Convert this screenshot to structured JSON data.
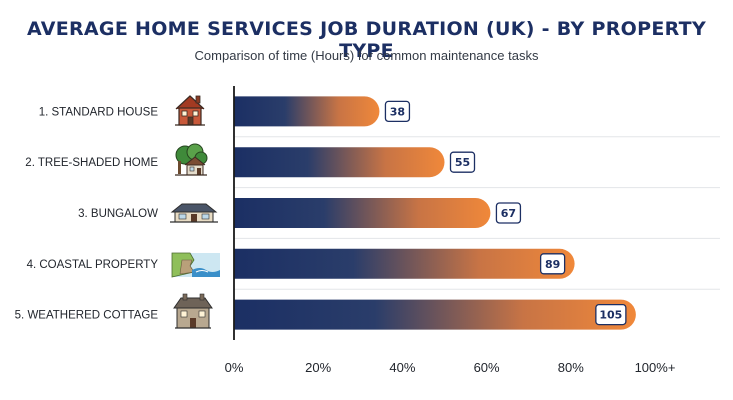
{
  "chart_data": {
    "type": "bar",
    "orientation": "horizontal",
    "title": "AVERAGE HOME SERVICES JOB DURATION (UK) - BY PROPERTY TYPE",
    "subtitle": "Comparison of time (Hours) for common maintenance tasks",
    "categories": [
      "1. STANDARD HOUSE",
      "2. TREE-SHADED HOME",
      "3. BUNGALOW",
      "4. COASTAL PROPERTY",
      "5. WEATHERED COTTAGE"
    ],
    "values": [
      38,
      55,
      67,
      89,
      105
    ],
    "icons": [
      "brick-house-icon",
      "tree-house-icon",
      "bungalow-icon",
      "coastal-cliff-icon",
      "stone-cottage-icon"
    ],
    "x_ticks": [
      "0%",
      "20%",
      "40%",
      "60%",
      "80%",
      "100%+"
    ],
    "xlim": [
      0,
      110
    ],
    "grid": true,
    "colors": {
      "bar_start": "#1b2f64",
      "bar_end": "#f0883a",
      "value_border": "#1c2f63"
    }
  }
}
